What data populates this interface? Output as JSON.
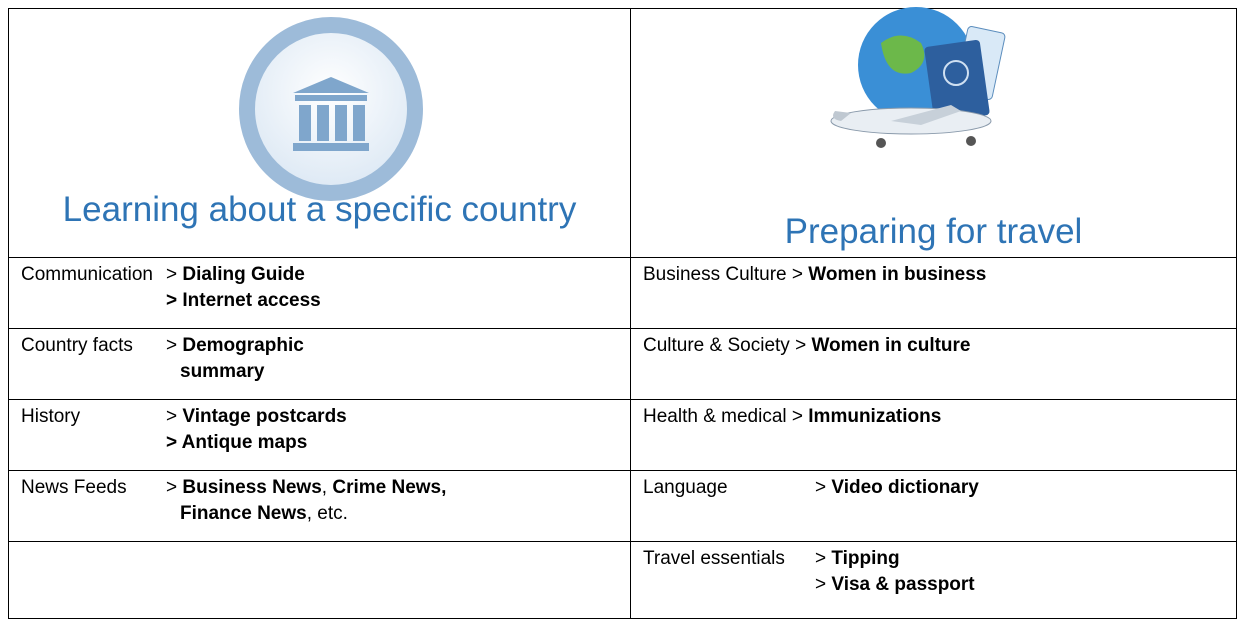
{
  "header": {
    "left_title": "Learning about a specific country",
    "right_title": "Preparing for travel"
  },
  "table": {
    "rows": [
      {
        "left": {
          "label": "Communication",
          "lines": [
            [
              {
                "text": "> ",
                "bold": false
              },
              {
                "text": "Dialing Guide",
                "bold": true
              }
            ],
            [
              {
                "text": "> Internet access",
                "bold": true
              }
            ]
          ]
        },
        "right": {
          "label": null,
          "lines": [
            [
              {
                "text": "Business Culture > ",
                "bold": false
              },
              {
                "text": "Women in business",
                "bold": true
              }
            ]
          ]
        }
      },
      {
        "left": {
          "label": "Country facts",
          "lines": [
            [
              {
                "text": "> ",
                "bold": false
              },
              {
                "text": "Demographic",
                "bold": true
              }
            ],
            [
              {
                "text": "summary",
                "bold": true
              }
            ]
          ]
        },
        "right": {
          "label": null,
          "lines": [
            [
              {
                "text": "Culture & Society > ",
                "bold": false
              },
              {
                "text": "Women in culture",
                "bold": true
              }
            ]
          ]
        }
      },
      {
        "left": {
          "label": "History",
          "lines": [
            [
              {
                "text": "> ",
                "bold": false
              },
              {
                "text": "Vintage postcards",
                "bold": true
              }
            ],
            [
              {
                "text": "> Antique maps",
                "bold": true
              }
            ]
          ]
        },
        "right": {
          "label": null,
          "lines": [
            [
              {
                "text": "Health & medical > ",
                "bold": false
              },
              {
                "text": "Immunizations",
                "bold": true
              }
            ]
          ]
        }
      },
      {
        "left": {
          "label": "News Feeds",
          "lines": [
            [
              {
                "text": "> ",
                "bold": false
              },
              {
                "text": "Business News",
                "bold": true
              },
              {
                "text": ", ",
                "bold": false
              },
              {
                "text": "Crime News,",
                "bold": true
              }
            ],
            [
              {
                "text": "Finance News",
                "bold": true
              },
              {
                "text": ", etc.",
                "bold": false
              }
            ]
          ]
        },
        "right": {
          "label": "Language",
          "lines": [
            [
              {
                "text": "> ",
                "bold": false
              },
              {
                "text": "Video dictionary",
                "bold": true
              }
            ]
          ]
        }
      },
      {
        "left": null,
        "right": {
          "label": "Travel essentials",
          "lines": [
            [
              {
                "text": "> ",
                "bold": false
              },
              {
                "text": "Tipping",
                "bold": true
              }
            ],
            [
              {
                "text": "> ",
                "bold": false
              },
              {
                "text": "Visa & passport",
                "bold": true
              }
            ]
          ]
        }
      }
    ]
  }
}
